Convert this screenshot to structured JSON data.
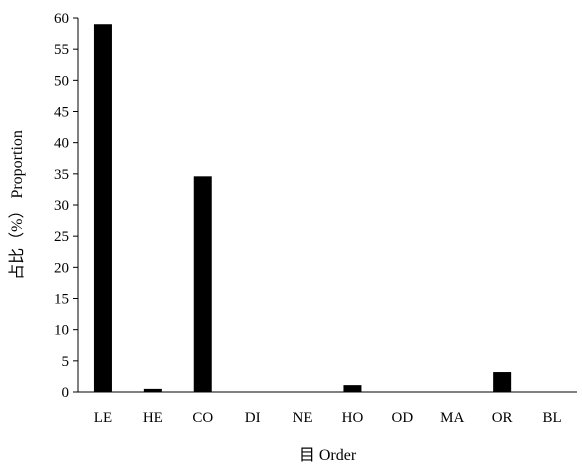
{
  "chart_data": {
    "type": "bar",
    "categories": [
      "LE",
      "HE",
      "CO",
      "DI",
      "NE",
      "HO",
      "OD",
      "MA",
      "OR",
      "BL"
    ],
    "values": [
      59,
      0.5,
      34.6,
      0,
      0,
      1.1,
      0,
      0,
      3.2,
      0
    ],
    "xlabel": "目 Order",
    "ylabel": "占比（%） Proportion",
    "ylim": [
      0,
      60
    ],
    "yticks": [
      0,
      5,
      10,
      15,
      20,
      25,
      30,
      35,
      40,
      45,
      50,
      55,
      60
    ],
    "grid": false,
    "legend": "none",
    "bar_color": "#000000"
  }
}
